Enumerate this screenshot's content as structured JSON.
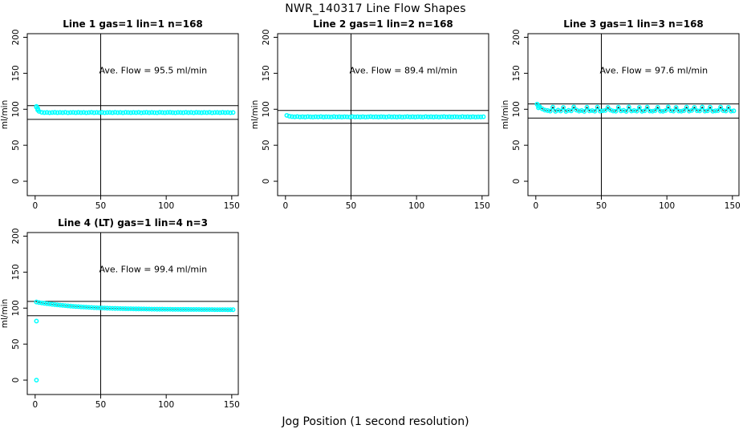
{
  "page": {
    "main_title": "NWR_140317  Line Flow Shapes",
    "x_axis_label": "Jog Position (1 second resolution)"
  },
  "colors": {
    "points": "#00FFFF",
    "lines": "#000000",
    "background": "#FFFFFF"
  },
  "chart_data": [
    {
      "type": "scatter",
      "title": "Line 1 gas=1 lin=1 n=168",
      "ylabel": "ml/min",
      "annotation": "Ave. Flow =  95.5  ml/min",
      "annotation_xy": [
        90,
        150
      ],
      "ave_flow": 95.5,
      "xlim": [
        -6,
        155
      ],
      "ylim": [
        -20,
        205
      ],
      "xticks": [
        0,
        50,
        100,
        150
      ],
      "yticks": [
        0,
        50,
        100,
        150,
        200
      ],
      "hlines": [
        105.1,
        86.0
      ],
      "vline": 50,
      "connect": false,
      "x_start": 1,
      "x_step": 2,
      "y": [
        104,
        97,
        95.8,
        95.4,
        95.6,
        95.2,
        95.5,
        95.7,
        95.3,
        95.6,
        95.4,
        95.8,
        95.2,
        95.5,
        95.6,
        95.3,
        95.7,
        95.4,
        95.6,
        95.2,
        95.5,
        95.8,
        95.3,
        95.6,
        95.4,
        95.7,
        95.2,
        95.5,
        95.6,
        95.3,
        95.8,
        95.4,
        95.6,
        95.2,
        95.7,
        95.5,
        95.3,
        95.6,
        95.4,
        95.8,
        95.2,
        95.5,
        95.7,
        95.3,
        95.6,
        95.4,
        95.2,
        95.8,
        95.5,
        95.3,
        95.6,
        95.7,
        95.4,
        95.2,
        95.6,
        95.5,
        95.3,
        95.8,
        95.4,
        95.6,
        95.2,
        95.7,
        95.5,
        95.3,
        95.6,
        95.4,
        95.8,
        95.2,
        95.5,
        95.6,
        95.3,
        95.7,
        95.4,
        95.6,
        95.2,
        95.5
      ],
      "outliers": [
        [
          1,
          103
        ],
        [
          2,
          101
        ],
        [
          2,
          99
        ]
      ]
    },
    {
      "type": "scatter",
      "title": "Line 2 gas=1 lin=2 n=168",
      "ylabel": "ml/min",
      "annotation": "Ave. Flow =  89.4  ml/min",
      "annotation_xy": [
        90,
        150
      ],
      "ave_flow": 89.4,
      "xlim": [
        -6,
        155
      ],
      "ylim": [
        -20,
        205
      ],
      "xticks": [
        0,
        50,
        100,
        150
      ],
      "yticks": [
        0,
        50,
        100,
        150,
        200
      ],
      "hlines": [
        98.3,
        80.5
      ],
      "vline": 50,
      "connect": false,
      "x_start": 1,
      "x_step": 2,
      "y": [
        91.5,
        90.3,
        89.8,
        89.5,
        89.9,
        89.4,
        89.7,
        89.3,
        89.8,
        89.5,
        89.2,
        89.7,
        89.4,
        89.8,
        89.3,
        89.6,
        89.5,
        89.2,
        89.8,
        89.4,
        89.6,
        89.3,
        89.7,
        89.5,
        89.2,
        89.8,
        89.4,
        89.6,
        89.3,
        89.7,
        89.2,
        89.5,
        89.8,
        89.4,
        89.6,
        89.3,
        89.7,
        89.5,
        89.2,
        89.8,
        89.4,
        89.6,
        89.3,
        89.7,
        89.2,
        89.5,
        89.8,
        89.4,
        89.6,
        89.3,
        89.7,
        89.5,
        89.2,
        89.8,
        89.4,
        89.6,
        89.3,
        89.7,
        89.2,
        89.5,
        89.8,
        89.4,
        89.6,
        89.3,
        89.7,
        89.5,
        89.2,
        89.8,
        89.4,
        89.6,
        89.3,
        89.7,
        89.2,
        89.5,
        89.4,
        89.6
      ],
      "outliers": []
    },
    {
      "type": "scatter",
      "title": "Line 3 gas=1 lin=3 n=168",
      "ylabel": "ml/min",
      "annotation": "Ave. Flow =  97.6  ml/min",
      "annotation_xy": [
        90,
        150
      ],
      "ave_flow": 97.6,
      "xlim": [
        -6,
        155
      ],
      "ylim": [
        -20,
        205
      ],
      "xticks": [
        0,
        50,
        100,
        150
      ],
      "yticks": [
        0,
        50,
        100,
        150,
        200
      ],
      "hlines": [
        107.4,
        87.8
      ],
      "vline": 50,
      "connect": true,
      "x_start": 1,
      "x_step": 2,
      "y": [
        107,
        103.5,
        100.5,
        98.8,
        98.2,
        97.5,
        103.0,
        97.2,
        98.8,
        97.6,
        102.5,
        97.1,
        98.6,
        97.8,
        103.2,
        98.9,
        97.5,
        98.2,
        97.0,
        102.8,
        97.7,
        98.1,
        97.3,
        103.0,
        97.5,
        97.9,
        98.4,
        102.4,
        98.8,
        97.6,
        97.3,
        102.9,
        97.8,
        98.5,
        97.1,
        103.1,
        97.6,
        98.3,
        97.4,
        102.6,
        97.2,
        97.9,
        103.0,
        97.6,
        97.3,
        98.1,
        102.7,
        97.5,
        97.2,
        98.3,
        103.2,
        98.0,
        97.4,
        102.5,
        97.6,
        97.3,
        98.2,
        103.0,
        97.5,
        98.4,
        102.6,
        98.0,
        97.7,
        103.1,
        97.4,
        97.9,
        102.8,
        97.3,
        97.8,
        98.1,
        103.0,
        98.2,
        97.6,
        102.7,
        97.4,
        97.8
      ],
      "outliers": [
        [
          1,
          107
        ],
        [
          2,
          104.5
        ],
        [
          2,
          102
        ]
      ]
    },
    {
      "type": "scatter",
      "title": "Line 4 (LT) gas=1 lin=4 n=3",
      "ylabel": "ml/min",
      "annotation": "Ave. Flow =  99.4  ml/min",
      "annotation_xy": [
        90,
        150
      ],
      "ave_flow": 99.4,
      "xlim": [
        -6,
        155
      ],
      "ylim": [
        -20,
        205
      ],
      "xticks": [
        0,
        50,
        100,
        150
      ],
      "yticks": [
        0,
        50,
        100,
        150,
        200
      ],
      "hlines": [
        109.3,
        89.5
      ],
      "vline": 50,
      "connect": true,
      "x_start": 1,
      "x_step": 2,
      "y": [
        108.5,
        107.8,
        107.2,
        106.7,
        106.2,
        105.8,
        105.3,
        104.9,
        104.5,
        104.1,
        103.8,
        103.4,
        103.1,
        102.8,
        102.5,
        102.2,
        102.0,
        101.7,
        101.5,
        101.3,
        101.1,
        100.9,
        100.7,
        100.5,
        100.4,
        100.2,
        100.1,
        99.9,
        99.8,
        99.7,
        99.6,
        99.5,
        99.4,
        99.3,
        99.2,
        99.1,
        99.1,
        99.0,
        98.9,
        98.9,
        98.8,
        98.8,
        98.7,
        98.7,
        98.6,
        98.6,
        98.5,
        98.5,
        98.5,
        98.4,
        98.4,
        98.4,
        98.3,
        98.3,
        98.3,
        98.2,
        98.2,
        98.2,
        98.2,
        98.1,
        98.1,
        98.1,
        98.1,
        98.0,
        98.0,
        98.0,
        98.0,
        98.0,
        97.9,
        97.9,
        97.9,
        97.9,
        97.9,
        97.8,
        97.8,
        97.8
      ],
      "outliers": [
        [
          1,
          82
        ],
        [
          1,
          0
        ]
      ]
    }
  ]
}
